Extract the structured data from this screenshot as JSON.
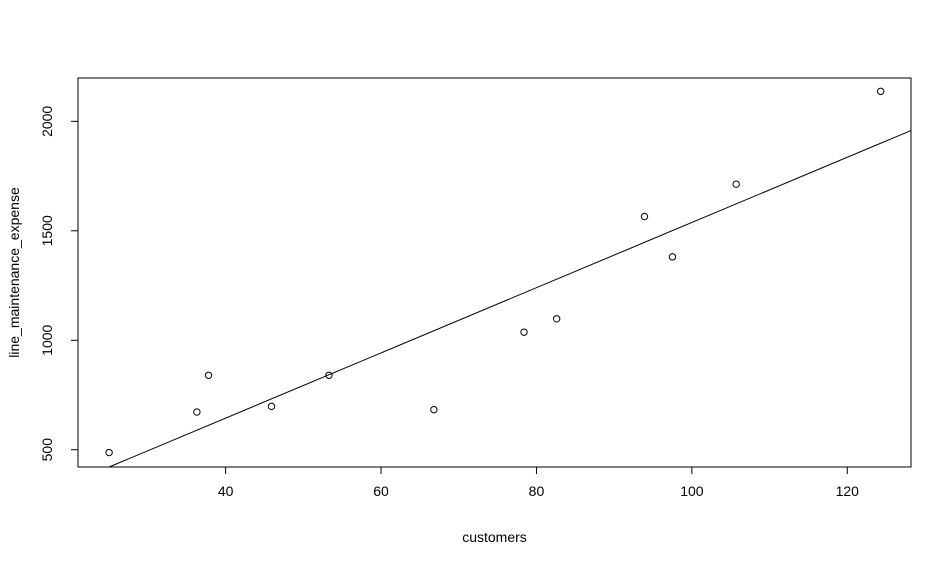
{
  "chart_data": {
    "type": "scatter",
    "title": "",
    "xlabel": "customers",
    "ylabel": "line_maintenance_expense",
    "xlim": [
      21,
      128.2
    ],
    "ylim": [
      421,
      2198
    ],
    "x_ticks": [
      40,
      60,
      80,
      100,
      120
    ],
    "y_ticks": [
      500,
      1000,
      1500,
      2000
    ],
    "grid": false,
    "colors": {
      "points": "#000000",
      "line": "#000000",
      "axes": "#000000"
    },
    "points": [
      {
        "x": 25.0,
        "y": 487
      },
      {
        "x": 36.3,
        "y": 672
      },
      {
        "x": 37.8,
        "y": 840
      },
      {
        "x": 45.9,
        "y": 698
      },
      {
        "x": 53.3,
        "y": 840
      },
      {
        "x": 66.8,
        "y": 683
      },
      {
        "x": 78.4,
        "y": 1037
      },
      {
        "x": 82.6,
        "y": 1098
      },
      {
        "x": 93.9,
        "y": 1565
      },
      {
        "x": 97.5,
        "y": 1381
      },
      {
        "x": 105.7,
        "y": 1713
      },
      {
        "x": 124.3,
        "y": 2137
      }
    ],
    "fit_line": {
      "x": [
        25.0,
        128.2
      ],
      "y": [
        421,
        1958
      ]
    }
  }
}
